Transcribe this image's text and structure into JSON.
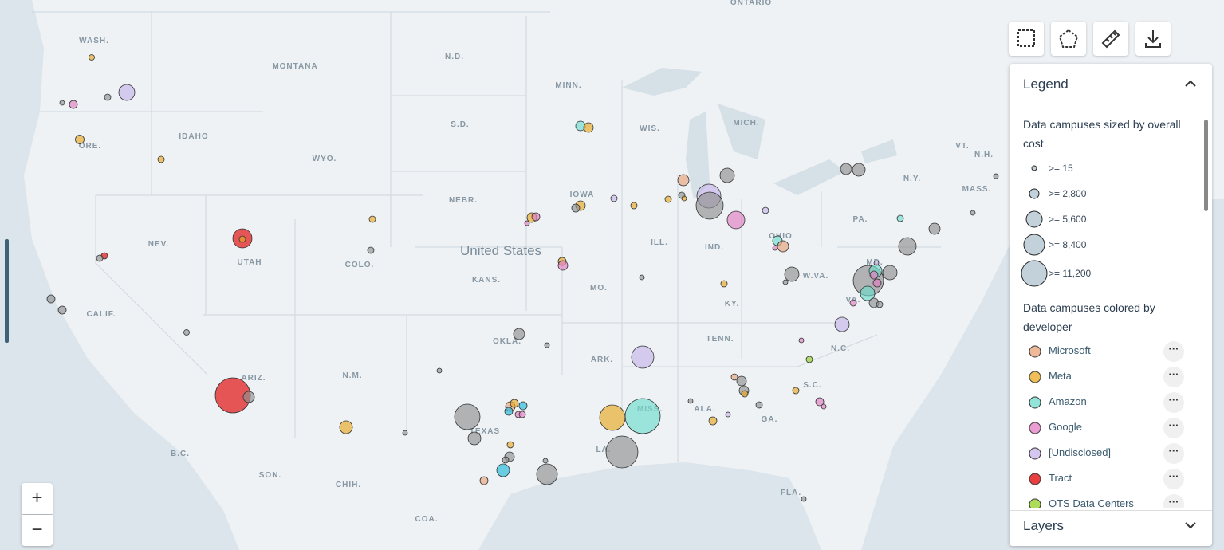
{
  "map": {
    "labels": [
      "ONTARIO",
      "WASH.",
      "MONTANA",
      "N.D.",
      "MINN.",
      "IDAHO",
      "ORE.",
      "WYO.",
      "S.D.",
      "WIS.",
      "MICH.",
      "VT.",
      "N.H.",
      "N.Y.",
      "MASS.",
      "IOWA",
      "NEBR.",
      "PA.",
      "NEV.",
      "UTAH",
      "COLO.",
      "ILL.",
      "IND.",
      "OHIO",
      "MD.",
      "KANS.",
      "MO.",
      "W.VA.",
      "VA.",
      "CALIF.",
      "KY.",
      "TENN.",
      "N.C.",
      "OKLA.",
      "ARK.",
      "ARIZ.",
      "N.M.",
      "S.C.",
      "TEXAS",
      "ALA.",
      "GA.",
      "MISS.",
      "LA.",
      "B.C.",
      "SON.",
      "CHIH.",
      "FLA.",
      "COA."
    ],
    "country": "United States"
  },
  "legend": {
    "title": "Legend",
    "size_heading": "Data campuses sized by overall cost",
    "sizes": [
      ">= 15",
      ">= 2,800",
      ">= 5,600",
      ">= 8,400",
      ">= 11,200"
    ],
    "color_heading": "Data campuses colored by developer",
    "developers": [
      {
        "name": "Microsoft",
        "color": "#e8a07a"
      },
      {
        "name": "Meta",
        "color": "#e8a820"
      },
      {
        "name": "Amazon",
        "color": "#6fdccc"
      },
      {
        "name": "Google",
        "color": "#e27cc0"
      },
      {
        "name": "[Undisclosed]",
        "color": "#c5b3e8"
      },
      {
        "name": "Tract",
        "color": "#e00000"
      },
      {
        "name": "QTS Data Centers",
        "color": "#90d020"
      }
    ]
  },
  "layers": {
    "title": "Layers"
  }
}
